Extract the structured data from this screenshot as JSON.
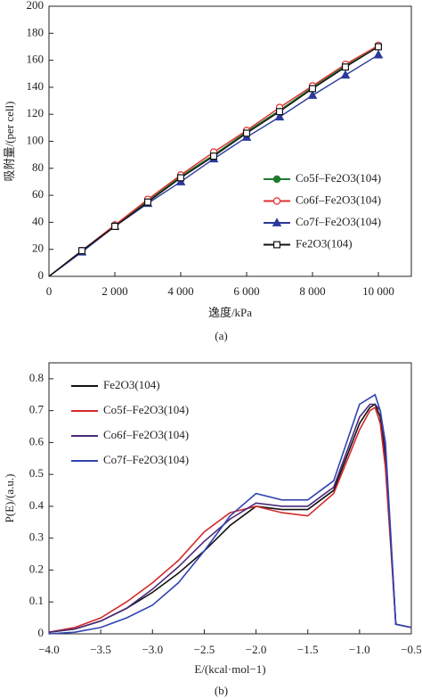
{
  "chart_data": [
    {
      "type": "line",
      "x_label": "逸度/kPa",
      "y_label": "吸附量/(per cell)",
      "caption": "(a)",
      "x": [
        0,
        1000,
        2000,
        3000,
        4000,
        5000,
        6000,
        7000,
        8000,
        9000,
        10000
      ],
      "xlim": [
        0,
        11000
      ],
      "xticks": [
        0,
        {
          "value": 2000,
          "label": "2 000"
        },
        {
          "value": 4000,
          "label": "4 000"
        },
        {
          "value": 6000,
          "label": "6 000"
        },
        {
          "value": 8000,
          "label": "8 000"
        },
        {
          "value": 10000,
          "label": "10 000"
        }
      ],
      "ylim": [
        0,
        200
      ],
      "yticks": [
        0,
        20,
        40,
        60,
        80,
        100,
        120,
        140,
        160,
        180,
        200
      ],
      "legend": "lower-right",
      "series": [
        {
          "name": "Co5f–Fe2O3(104)",
          "color": "#1f7a30",
          "marker": "filled-circle",
          "values": [
            0,
            19,
            38,
            56,
            74,
            90,
            107,
            123,
            140,
            156,
            170
          ]
        },
        {
          "name": "Co6f–Fe2O3(104)",
          "color": "#e03030",
          "marker": "open-circle",
          "values": [
            0,
            19,
            38,
            57,
            75,
            92,
            108,
            125,
            141,
            157,
            171
          ]
        },
        {
          "name": "Co7f–Fe2O3(104)",
          "color": "#2b3a9a",
          "marker": "filled-triangle",
          "values": [
            0,
            18,
            37,
            54,
            70,
            87,
            103,
            118,
            134,
            149,
            164
          ]
        },
        {
          "name": "Fe2O3(104)",
          "color": "#111111",
          "marker": "open-square",
          "values": [
            0,
            19,
            37,
            55,
            73,
            89,
            106,
            122,
            139,
            155,
            170
          ]
        }
      ]
    },
    {
      "type": "line",
      "x_label": "E/(kcal·mol−1)",
      "y_label": "P(E)/(a.u.)",
      "caption": "(b)",
      "x": [
        -4.0,
        -3.75,
        -3.5,
        -3.25,
        -3.0,
        -2.75,
        -2.5,
        -2.25,
        -2.0,
        -1.75,
        -1.5,
        -1.25,
        -1.0,
        -0.9,
        -0.85,
        -0.8,
        -0.75,
        -0.7,
        -0.65,
        -0.5
      ],
      "xlim": [
        -4.0,
        -0.5
      ],
      "xticks": [
        {
          "value": -4.0,
          "label": "−4.0"
        },
        {
          "value": -3.5,
          "label": "−3.5"
        },
        {
          "value": -3.0,
          "label": "−3.0"
        },
        {
          "value": -2.5,
          "label": "−2.5"
        },
        {
          "value": -2.0,
          "label": "−2.0"
        },
        {
          "value": -1.5,
          "label": "−1.5"
        },
        {
          "value": -1.0,
          "label": "−1.0"
        },
        {
          "value": -0.5,
          "label": "−0.5"
        }
      ],
      "ylim": [
        0,
        0.85
      ],
      "yticks": [
        0,
        0.1,
        0.2,
        0.3,
        0.4,
        0.5,
        0.6,
        0.7,
        0.8
      ],
      "legend": "upper-left",
      "series": [
        {
          "name": "Fe2O3(104)",
          "color": "#111111",
          "values": [
            0.005,
            0.015,
            0.04,
            0.08,
            0.13,
            0.19,
            0.26,
            0.34,
            0.4,
            0.39,
            0.39,
            0.45,
            0.66,
            0.71,
            0.72,
            0.68,
            0.55,
            0.3,
            0.03,
            0.02
          ]
        },
        {
          "name": "Co5f–Fe2O3(104)",
          "color": "#d42a2a",
          "values": [
            0.005,
            0.02,
            0.05,
            0.1,
            0.16,
            0.23,
            0.32,
            0.38,
            0.4,
            0.38,
            0.37,
            0.44,
            0.64,
            0.7,
            0.71,
            0.66,
            0.52,
            0.28,
            0.03,
            0.02
          ]
        },
        {
          "name": "Co6f–Fe2O3(104)",
          "color": "#4a2a7a",
          "values": [
            0.005,
            0.015,
            0.04,
            0.08,
            0.14,
            0.21,
            0.29,
            0.36,
            0.41,
            0.4,
            0.4,
            0.46,
            0.68,
            0.72,
            0.72,
            0.7,
            0.58,
            0.3,
            0.03,
            0.02
          ]
        },
        {
          "name": "Co7f–Fe2O3(104)",
          "color": "#3045b0",
          "values": [
            0.0,
            0.005,
            0.02,
            0.05,
            0.09,
            0.16,
            0.26,
            0.37,
            0.44,
            0.42,
            0.42,
            0.48,
            0.72,
            0.74,
            0.75,
            0.7,
            0.6,
            0.32,
            0.03,
            0.02
          ]
        }
      ]
    }
  ]
}
